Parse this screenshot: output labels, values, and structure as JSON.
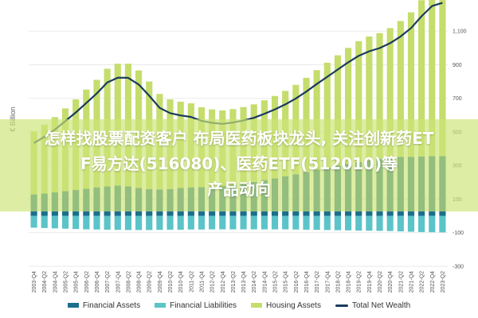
{
  "chart_data": {
    "type": "bar",
    "ylabel": "€ Billion",
    "ylim": [
      -300,
      1200
    ],
    "y_ticks": [
      1100,
      900,
      700,
      500,
      300,
      100,
      -100,
      -300
    ],
    "y_tick_labels": [
      "1,100",
      "900",
      "700",
      "500",
      "300",
      "100",
      "-100",
      "-300"
    ],
    "categories": [
      "2003-Q4",
      "2004-Q2",
      "2004-Q4",
      "2005-Q2",
      "2005-Q4",
      "2006-Q2",
      "2006-Q4",
      "2007-Q2",
      "2007-Q4",
      "2008-Q2",
      "2008-Q4",
      "2009-Q2",
      "2009-Q4",
      "2010-Q2",
      "2010-Q4",
      "2011-Q2",
      "2011-Q4",
      "2012-Q2",
      "2012-Q4",
      "2013-Q2",
      "2013-Q4",
      "2014-Q2",
      "2014-Q4",
      "2015-Q2",
      "2015-Q4",
      "2016-Q2",
      "2016-Q4",
      "2017-Q2",
      "2017-Q4",
      "2018-Q2",
      "2018-Q4",
      "2019-Q2",
      "2019-Q4",
      "2020-Q2",
      "2020-Q4",
      "2021-Q2",
      "2021-Q4",
      "2022-Q2",
      "2022-Q4",
      "2023-Q2"
    ],
    "series": [
      {
        "name": "Financial Assets",
        "kind": "bar",
        "color": "#1b6f8c",
        "values": [
          128,
          133,
          140,
          148,
          154,
          162,
          170,
          176,
          181,
          176,
          166,
          160,
          158,
          160,
          166,
          170,
          171,
          174,
          178,
          186,
          194,
          202,
          214,
          224,
          236,
          248,
          262,
          276,
          288,
          300,
          310,
          320,
          330,
          340,
          348,
          352,
          352,
          354,
          356,
          356
        ]
      },
      {
        "name": "Financial Liabilities",
        "kind": "bar",
        "color": "#5bc4c9",
        "values": [
          -70,
          -72,
          -74,
          -76,
          -78,
          -80,
          -81,
          -82,
          -83,
          -84,
          -84,
          -84,
          -83,
          -82,
          -82,
          -81,
          -81,
          -80,
          -80,
          -80,
          -80,
          -80,
          -80,
          -80,
          -80,
          -81,
          -82,
          -83,
          -84,
          -85,
          -86,
          -87,
          -88,
          -89,
          -90,
          -92,
          -94,
          -96,
          -97,
          -98
        ]
      },
      {
        "name": "Housing Assets",
        "kind": "bar",
        "color": "#c5dd6c",
        "values": [
          376,
          410,
          448,
          492,
          540,
          590,
          640,
          700,
          725,
          730,
          700,
          640,
          568,
          534,
          514,
          500,
          476,
          460,
          450,
          450,
          454,
          462,
          474,
          490,
          508,
          532,
          560,
          592,
          624,
          656,
          690,
          720,
          738,
          748,
          770,
          808,
          860,
          930,
          990,
          1010
        ]
      },
      {
        "name": "Total Net Wealth",
        "kind": "line",
        "color": "#1a3a5c",
        "values": [
          434,
          471,
          514,
          564,
          616,
          672,
          729,
          794,
          823,
          822,
          782,
          716,
          643,
          612,
          598,
          589,
          566,
          554,
          548,
          556,
          568,
          584,
          608,
          634,
          664,
          699,
          740,
          785,
          828,
          871,
          914,
          953,
          980,
          999,
          1028,
          1068,
          1118,
          1188,
          1249,
          1268
        ]
      }
    ]
  },
  "banner": {
    "line1": "怎样找股票配资客户 布局医药板块龙头, 关注创新药ETF易方达(516080)、医药ETF(512010)等产品动向"
  }
}
